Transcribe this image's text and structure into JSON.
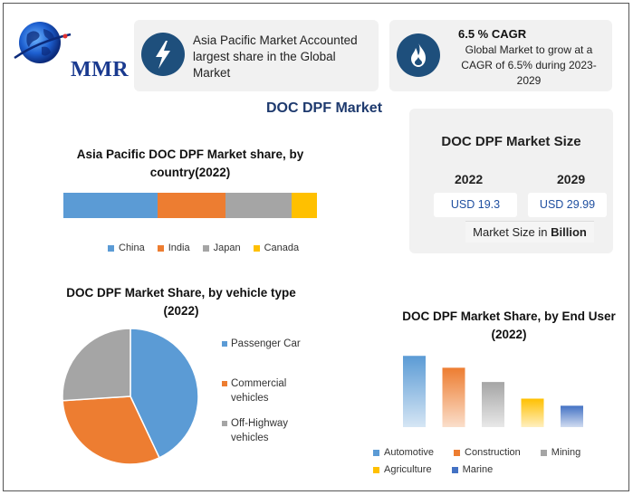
{
  "logo": {
    "text": "MMR"
  },
  "card1": {
    "icon": "lightning-bolt-icon",
    "text": "Asia Pacific Market Accounted largest share in the Global Market"
  },
  "card2": {
    "icon": "flame-icon",
    "heading": "6.5 % CAGR",
    "text": "Global Market to grow at a CAGR of 6.5% during 2023-2029"
  },
  "main_title": "DOC DPF Market",
  "market_size": {
    "title": "DOC DPF Market Size",
    "year_a": "2022",
    "year_b": "2029",
    "value_a": "USD 19.3",
    "value_b": "USD 29.99",
    "note_prefix": "Market Size in ",
    "note_unit": "Billion"
  },
  "colors": {
    "blue": "#5b9bd5",
    "orange": "#ed7d31",
    "gray": "#a5a5a5",
    "yellow": "#ffc000",
    "navy": "#4472c4",
    "icon_bg": "#1e4f7c",
    "title_blue": "#1e3a6e"
  },
  "chart_data": [
    {
      "type": "bar",
      "orientation": "horizontal-stacked",
      "title": "Asia Pacific DOC DPF  Market share, by country(2022)",
      "series": [
        {
          "name": "China",
          "values": [
            37
          ],
          "color": "#5b9bd5"
        },
        {
          "name": "India",
          "values": [
            27
          ],
          "color": "#ed7d31"
        },
        {
          "name": "Japan",
          "values": [
            26
          ],
          "color": "#a5a5a5"
        },
        {
          "name": "Canada",
          "values": [
            10
          ],
          "color": "#ffc000"
        }
      ],
      "xlim": [
        0,
        100
      ]
    },
    {
      "type": "pie",
      "title": "DOC DPF Market Share, by vehicle type (2022)",
      "labels": [
        "Passenger Car",
        "Commercial vehicles",
        "Off-Highway vehicles"
      ],
      "values": [
        43,
        31,
        26
      ],
      "colors": [
        "#5b9bd5",
        "#ed7d31",
        "#a5a5a5"
      ]
    },
    {
      "type": "bar",
      "title": "DOC DPF Market Share, by End User (2022)",
      "categories": [
        "Automotive",
        "Construction",
        "Mining",
        "Agriculture",
        "Marine"
      ],
      "values": [
        30,
        25,
        19,
        12,
        9
      ],
      "colors": [
        "#5b9bd5",
        "#ed7d31",
        "#a5a5a5",
        "#ffc000",
        "#4472c4"
      ],
      "ylim": [
        0,
        32
      ]
    }
  ]
}
